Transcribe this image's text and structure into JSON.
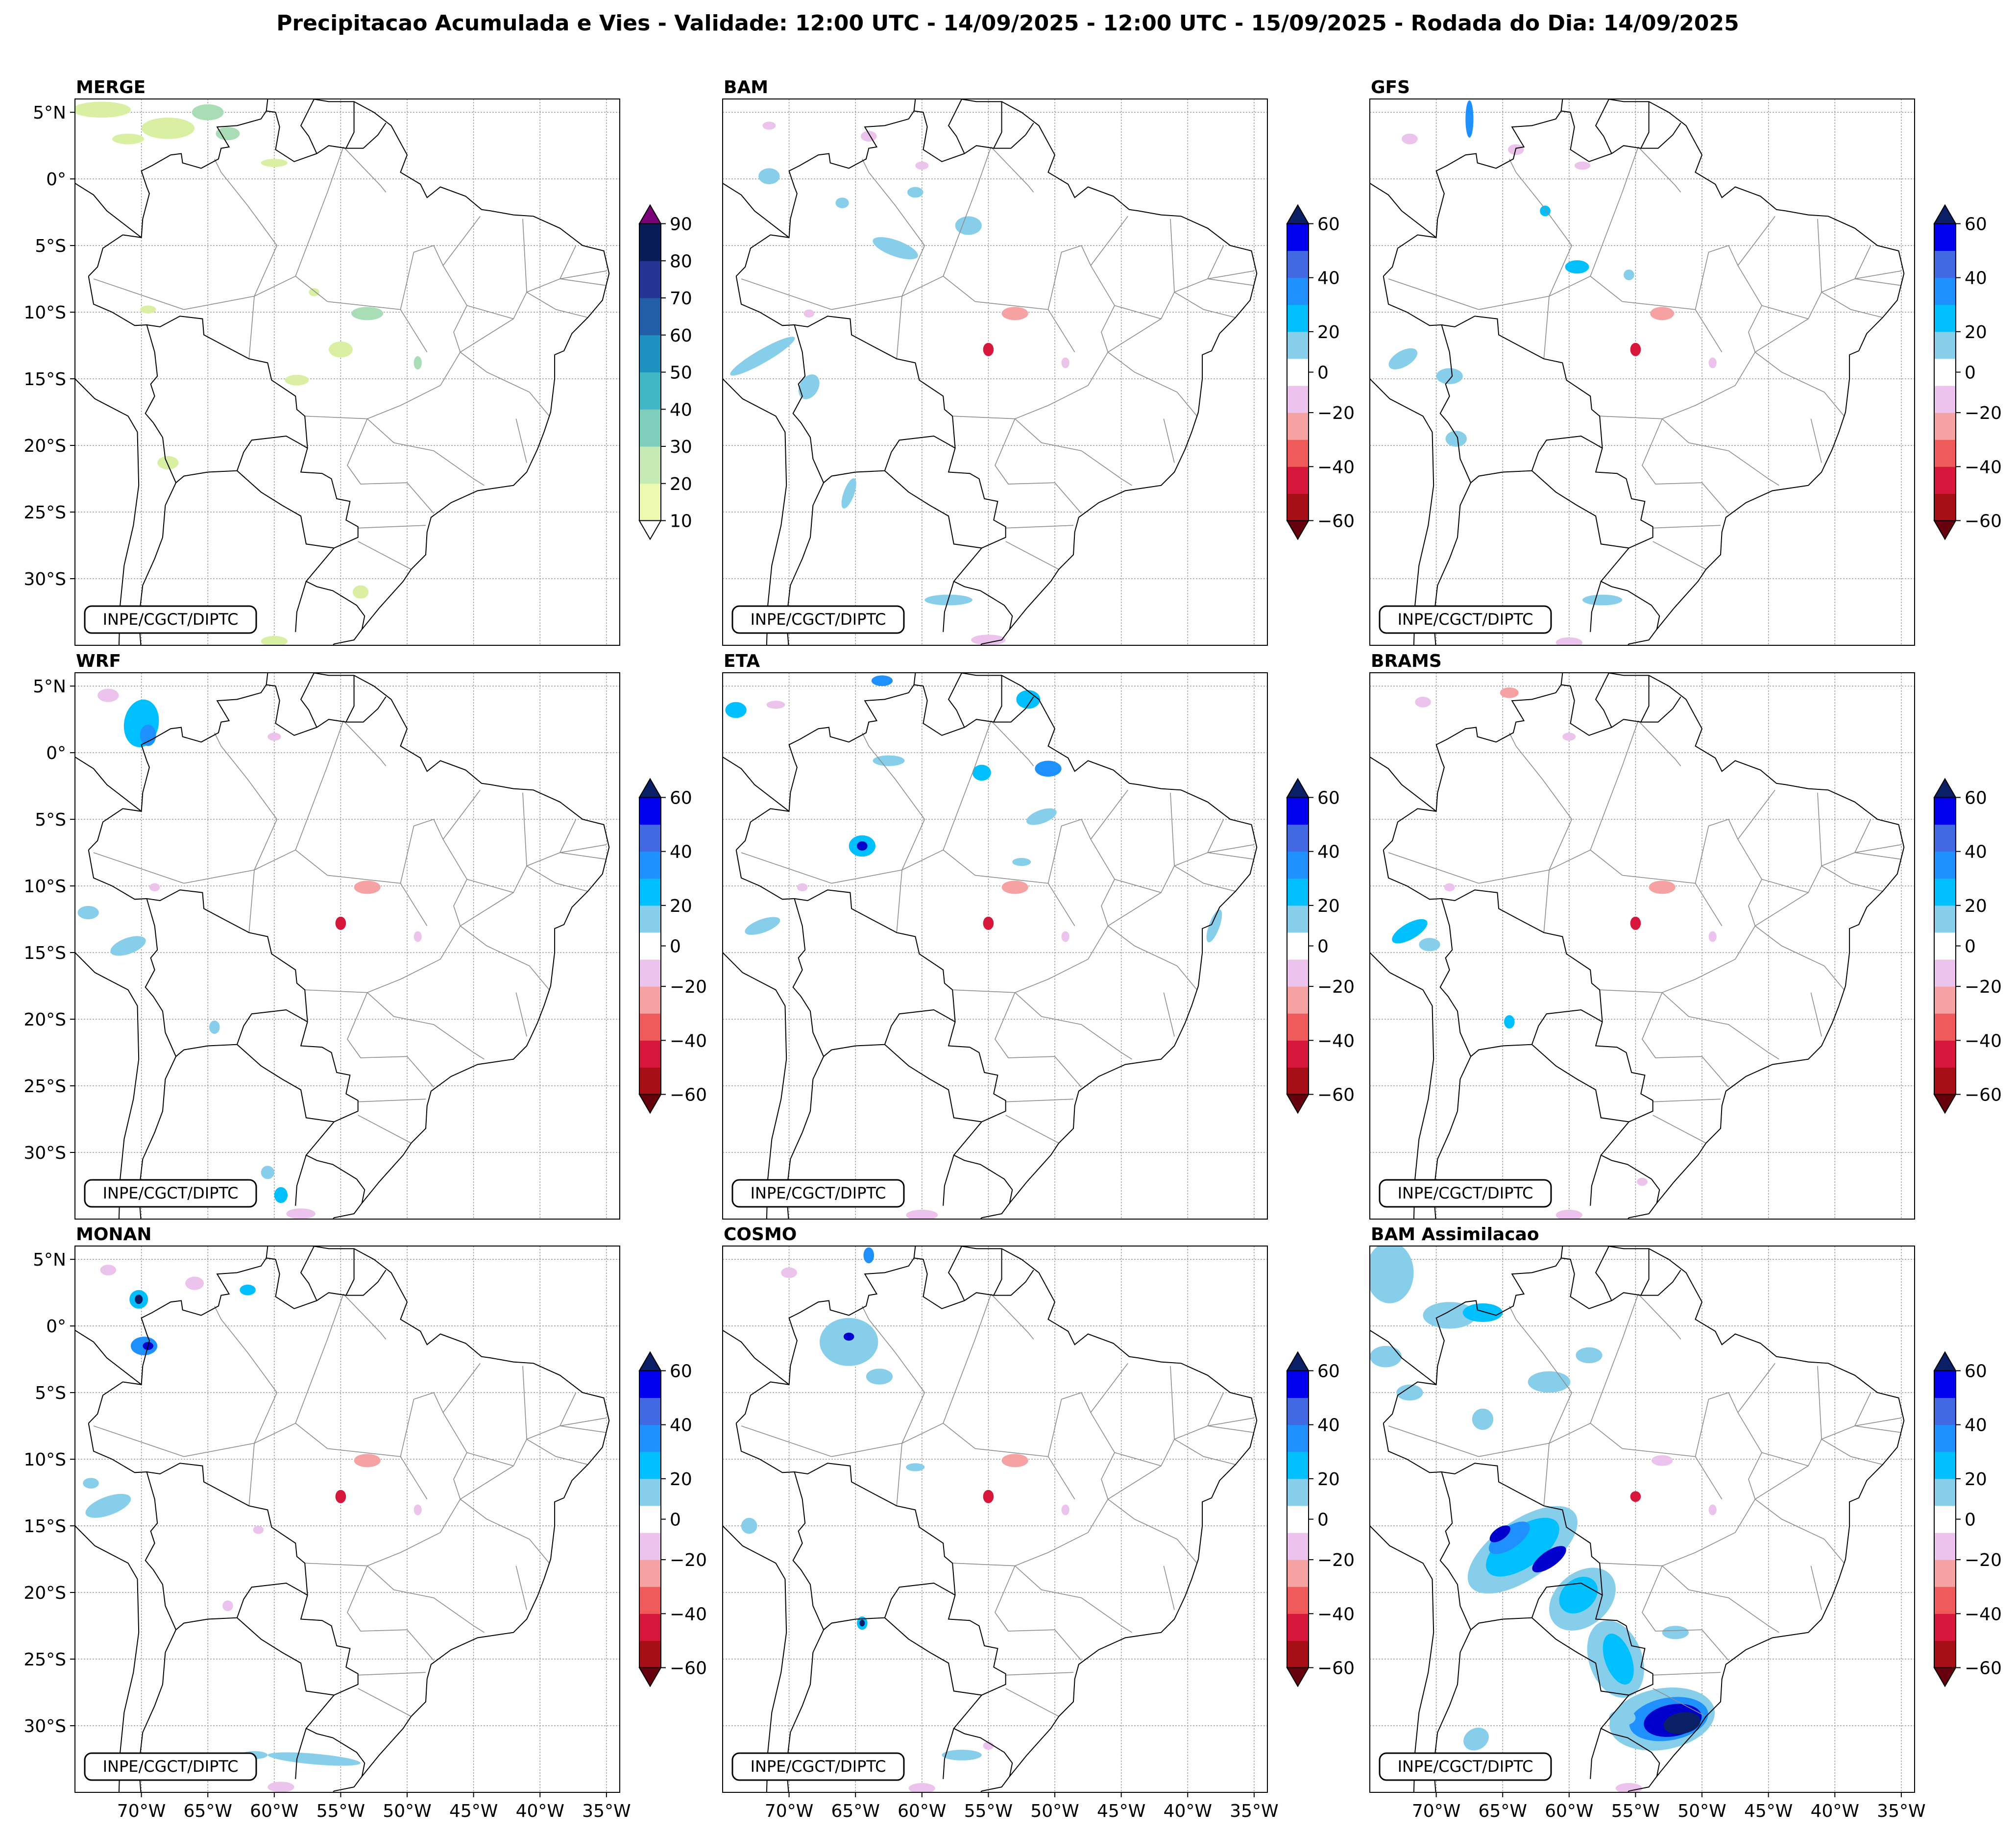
{
  "figure_title": "Precipitacao Acumulada e Vies - Validade: 12:00 UTC - 14/09/2025 - 12:00 UTC - 15/09/2025 - Rodada do Dia: 14/09/2025",
  "credit_label": "INPE/CGCT/DIPTC",
  "chart_data": [
    {
      "type": "map",
      "title": "MERGE",
      "colorbar": "precip"
    },
    {
      "type": "map",
      "title": "BAM",
      "colorbar": "bias"
    },
    {
      "type": "map",
      "title": "GFS",
      "colorbar": "bias"
    },
    {
      "type": "map",
      "title": "WRF",
      "colorbar": "bias"
    },
    {
      "type": "map",
      "title": "ETA",
      "colorbar": "bias"
    },
    {
      "type": "map",
      "title": "BRAMS",
      "colorbar": "bias"
    },
    {
      "type": "map",
      "title": "MONAN",
      "colorbar": "bias"
    },
    {
      "type": "map",
      "title": "COSMO",
      "colorbar": "bias"
    },
    {
      "type": "map",
      "title": "BAM Assimilacao",
      "colorbar": "bias"
    }
  ],
  "map_extent": {
    "lon_min": -75,
    "lon_max": -34,
    "lat_min": -35,
    "lat_max": 6
  },
  "lat_ticks": [
    {
      "value": 5,
      "label": "5°N"
    },
    {
      "value": 0,
      "label": "0°"
    },
    {
      "value": -5,
      "label": "5°S"
    },
    {
      "value": -10,
      "label": "10°S"
    },
    {
      "value": -15,
      "label": "15°S"
    },
    {
      "value": -20,
      "label": "20°S"
    },
    {
      "value": -25,
      "label": "25°S"
    },
    {
      "value": -30,
      "label": "30°S"
    }
  ],
  "lon_ticks": [
    {
      "value": -70,
      "label": "70°W"
    },
    {
      "value": -65,
      "label": "65°W"
    },
    {
      "value": -60,
      "label": "60°W"
    },
    {
      "value": -55,
      "label": "55°W"
    },
    {
      "value": -50,
      "label": "50°W"
    },
    {
      "value": -45,
      "label": "45°W"
    },
    {
      "value": -40,
      "label": "40°W"
    },
    {
      "value": -35,
      "label": "35°W"
    }
  ],
  "precip_colorbar": {
    "levels": [
      10,
      20,
      30,
      40,
      50,
      60,
      70,
      80,
      90
    ],
    "tick_labels": [
      "10",
      "20",
      "30",
      "40",
      "50",
      "60",
      "70",
      "80",
      "90"
    ],
    "colors": [
      "#edf8b1",
      "#c7e9b4",
      "#7fcdbb",
      "#41b6c4",
      "#1d91c0",
      "#225ea8",
      "#253494",
      "#081d58"
    ],
    "under_color": "#ffffff",
    "over_color": "#7a0177"
  },
  "bias_colorbar": {
    "levels": [
      -60,
      -50,
      -40,
      -30,
      -20,
      -10,
      10,
      20,
      30,
      40,
      50,
      60
    ],
    "tick_values": [
      -60,
      -40,
      -20,
      0,
      20,
      40,
      60
    ],
    "tick_labels": [
      "−60",
      "−40",
      "−20",
      "0",
      "20",
      "40",
      "60"
    ],
    "colors": [
      "#a50f15",
      "#d6163b",
      "#ef5b5b",
      "#f7a2a2",
      "#ecc3ec",
      "#ffffff",
      "#87ceeb",
      "#00bfff",
      "#1e90ff",
      "#4169e1",
      "#0000ee"
    ],
    "under_color": "#67000d",
    "over_color": "#0a1f66"
  },
  "blob_colors": {
    "precip_light": "#d9f0a3",
    "precip_mid": "#a8ddb5",
    "precip_dark": "#41b6c4",
    "bias_light_blue": "#87ceeb",
    "bias_mid_blue": "#00bfff",
    "bias_blue": "#1e90ff",
    "bias_dark_blue": "#0000cd",
    "bias_navy": "#0a1f66",
    "bias_pink": "#ecc3ec",
    "bias_salmon": "#f7a2a2",
    "bias_red": "#d6163b"
  }
}
